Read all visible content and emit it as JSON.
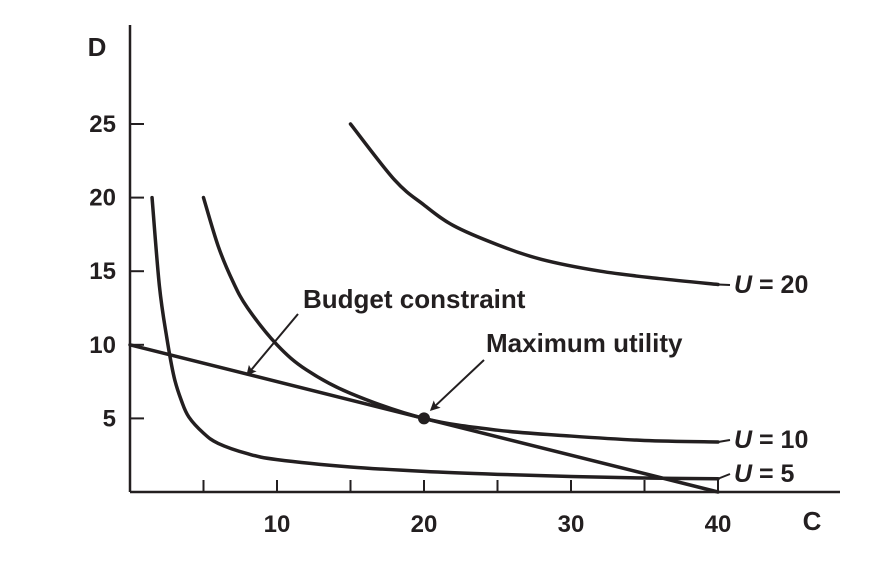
{
  "chart_data": {
    "type": "line",
    "xlabel": "C",
    "ylabel": "D",
    "xlim": [
      0,
      40
    ],
    "ylim": [
      0,
      25
    ],
    "x_ticks": [
      10,
      20,
      30,
      40
    ],
    "x_minor_ticks": [
      5,
      15,
      25,
      35
    ],
    "y_ticks": [
      5,
      10,
      15,
      20,
      25
    ],
    "series": [
      {
        "name": "U = 20",
        "label_parts": {
          "u": "U",
          "rest": " = 20"
        },
        "points": [
          [
            15,
            25
          ],
          [
            18,
            21.2
          ],
          [
            20,
            19.5
          ],
          [
            22,
            18.1
          ],
          [
            25,
            16.8
          ],
          [
            28,
            15.8
          ],
          [
            32,
            15.0
          ],
          [
            36,
            14.5
          ],
          [
            40,
            14.1
          ]
        ]
      },
      {
        "name": "U = 10",
        "label_parts": {
          "u": "U",
          "rest": " = 10"
        },
        "points": [
          [
            5,
            20
          ],
          [
            6,
            16.7
          ],
          [
            7,
            14.3
          ],
          [
            8,
            12.5
          ],
          [
            10,
            10
          ],
          [
            12,
            8.3
          ],
          [
            15,
            6.7
          ],
          [
            20,
            5
          ],
          [
            25,
            4.2
          ],
          [
            30,
            3.8
          ],
          [
            35,
            3.5
          ],
          [
            40,
            3.4
          ]
        ]
      },
      {
        "name": "U = 5",
        "label_parts": {
          "u": "U",
          "rest": " = 5"
        },
        "points": [
          [
            1.5,
            20
          ],
          [
            2,
            14
          ],
          [
            2.5,
            10.5
          ],
          [
            3,
            7.8
          ],
          [
            3.5,
            6.2
          ],
          [
            4,
            5.1
          ],
          [
            5,
            4
          ],
          [
            6,
            3.3
          ],
          [
            8,
            2.6
          ],
          [
            10,
            2.2
          ],
          [
            15,
            1.7
          ],
          [
            20,
            1.4
          ],
          [
            25,
            1.2
          ],
          [
            30,
            1.05
          ],
          [
            35,
            0.95
          ],
          [
            40,
            0.9
          ]
        ]
      },
      {
        "name": "Budget constraint",
        "points": [
          [
            0,
            10
          ],
          [
            40,
            0
          ]
        ]
      }
    ],
    "marker": {
      "x": 20,
      "y": 5
    },
    "annotations": [
      {
        "text": "Budget constraint",
        "target": [
          8,
          8
        ]
      },
      {
        "text": "Maximum utility",
        "target": [
          20.5,
          5.6
        ]
      }
    ]
  }
}
